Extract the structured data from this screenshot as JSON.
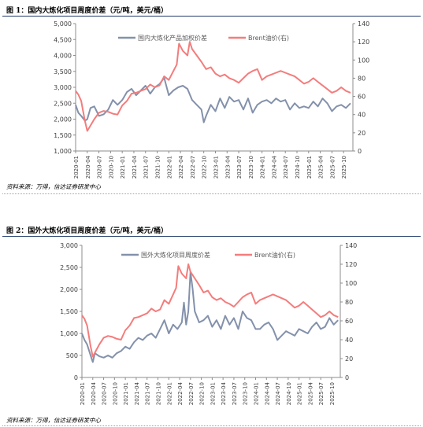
{
  "figures": [
    {
      "title": "图 1：国内大炼化项目周度价差（元/吨，美元/桶）",
      "source": "资料来源：万得，信达证券研发中心"
    },
    {
      "title": "图 2：国外大炼化项目周度价差（元/吨，美元/桶）",
      "source": "资料来源：万得，信达证券研发中心"
    }
  ],
  "colors": {
    "spread": "#8391ab",
    "brent": "#f47c7c",
    "axis": "#8c8c8c"
  },
  "chart_data": [
    {
      "type": "line",
      "categories": [
        "2020-01",
        "2020-04",
        "2020-07",
        "2020-10",
        "2021-01",
        "2021-04",
        "2021-07",
        "2021-10",
        "2022-01",
        "2022-04",
        "2022-07",
        "2022-10",
        "2023-01",
        "2023-04",
        "2023-07",
        "2023-10",
        "2024-01",
        "2024-04",
        "2024-07",
        "2024-10",
        "2025-01",
        "2025-04",
        "2025-07",
        "2025-10"
      ],
      "x_range": [
        2020.0,
        2025.95
      ],
      "yticks_left": [
        "1,000",
        "1,500",
        "2,000",
        "2,500",
        "3,000",
        "3,500",
        "4,000",
        "4,500",
        "5,000"
      ],
      "ylim_left": [
        1000,
        5000
      ],
      "yticks_right": [
        "0",
        "20",
        "40",
        "60",
        "80",
        "100",
        "120",
        "140"
      ],
      "ylim_right": [
        0,
        140
      ],
      "legend_position": "top",
      "series": [
        {
          "name": "国内大炼化产品加权价差",
          "axis": "left",
          "x": [
            2020.0,
            2020.06,
            2020.12,
            2020.2,
            2020.25,
            2020.32,
            2020.4,
            2020.5,
            2020.6,
            2020.7,
            2020.8,
            2020.9,
            2021.0,
            2021.1,
            2021.2,
            2021.3,
            2021.4,
            2021.5,
            2021.6,
            2021.7,
            2021.8,
            2021.9,
            2022.0,
            2022.1,
            2022.2,
            2022.3,
            2022.4,
            2022.5,
            2022.6,
            2022.7,
            2022.75,
            2022.8,
            2022.9,
            2023.0,
            2023.1,
            2023.2,
            2023.3,
            2023.4,
            2023.5,
            2023.6,
            2023.7,
            2023.8,
            2023.9,
            2024.0,
            2024.1,
            2024.2,
            2024.3,
            2024.4,
            2024.5,
            2024.6,
            2024.7,
            2024.8,
            2024.9,
            2025.0,
            2025.1,
            2025.2,
            2025.3,
            2025.4,
            2025.5,
            2025.6,
            2025.7,
            2025.8,
            2025.9
          ],
          "values": [
            2450,
            2200,
            2100,
            1950,
            2000,
            2350,
            2400,
            2100,
            2150,
            2300,
            2600,
            2450,
            2600,
            2850,
            2950,
            2750,
            2900,
            3050,
            2800,
            3000,
            3100,
            3300,
            2750,
            2900,
            3000,
            3050,
            2950,
            2600,
            2450,
            2300,
            1900,
            2100,
            2450,
            2250,
            2650,
            2350,
            2700,
            2550,
            2600,
            2300,
            2650,
            2200,
            2450,
            2550,
            2600,
            2500,
            2650,
            2550,
            2600,
            2300,
            2500,
            2350,
            2400,
            2350,
            2550,
            2400,
            2650,
            2500,
            2250,
            2400,
            2450,
            2350,
            2500
          ]
        },
        {
          "name": "Brent油价(右)",
          "axis": "right",
          "x": [
            2020.0,
            2020.06,
            2020.12,
            2020.2,
            2020.25,
            2020.32,
            2020.4,
            2020.5,
            2020.6,
            2020.7,
            2020.8,
            2020.9,
            2021.0,
            2021.1,
            2021.2,
            2021.3,
            2021.4,
            2021.5,
            2021.6,
            2021.7,
            2021.8,
            2021.9,
            2022.0,
            2022.1,
            2022.17,
            2022.22,
            2022.3,
            2022.4,
            2022.45,
            2022.5,
            2022.6,
            2022.7,
            2022.8,
            2022.9,
            2023.0,
            2023.1,
            2023.2,
            2023.3,
            2023.4,
            2023.5,
            2023.6,
            2023.7,
            2023.8,
            2023.9,
            2024.0,
            2024.1,
            2024.2,
            2024.3,
            2024.4,
            2024.5,
            2024.6,
            2024.7,
            2024.8,
            2024.9,
            2025.0,
            2025.1,
            2025.2,
            2025.3,
            2025.4,
            2025.5,
            2025.6,
            2025.7,
            2025.8,
            2025.9
          ],
          "values": [
            66,
            62,
            55,
            33,
            22,
            28,
            35,
            42,
            44,
            43,
            41,
            40,
            50,
            55,
            63,
            64,
            66,
            68,
            73,
            70,
            72,
            82,
            78,
            88,
            95,
            118,
            110,
            105,
            120,
            112,
            105,
            98,
            90,
            92,
            85,
            82,
            84,
            80,
            78,
            75,
            80,
            85,
            88,
            90,
            78,
            82,
            84,
            86,
            88,
            86,
            84,
            82,
            78,
            74,
            76,
            80,
            76,
            72,
            68,
            64,
            66,
            70,
            66,
            64
          ]
        }
      ]
    },
    {
      "type": "line",
      "categories": [
        "2020-01",
        "2020-04",
        "2020-07",
        "2020-10",
        "2021-01",
        "2021-04",
        "2021-07",
        "2021-10",
        "2022-01",
        "2022-04",
        "2022-07",
        "2022-10",
        "2023-01",
        "2023-04",
        "2023-07",
        "2023-10",
        "2024-01",
        "2024-04",
        "2024-07",
        "2024-10",
        "2025-01",
        "2025-04",
        "2025-07",
        "2025-10"
      ],
      "x_range": [
        2020.0,
        2025.95
      ],
      "yticks_left": [
        "0",
        "500",
        "1,000",
        "1,500",
        "2,000",
        "2,500",
        "3,000"
      ],
      "ylim_left": [
        0,
        3000
      ],
      "yticks_right": [
        "0",
        "20",
        "40",
        "60",
        "80",
        "100",
        "120",
        "140"
      ],
      "ylim_right": [
        0,
        140
      ],
      "legend_position": "top",
      "series": [
        {
          "name": "国外大炼化项目周度价差",
          "axis": "left",
          "x": [
            2020.0,
            2020.06,
            2020.12,
            2020.2,
            2020.25,
            2020.3,
            2020.4,
            2020.5,
            2020.6,
            2020.7,
            2020.8,
            2020.9,
            2021.0,
            2021.1,
            2021.2,
            2021.3,
            2021.4,
            2021.5,
            2021.6,
            2021.7,
            2021.8,
            2021.9,
            2022.0,
            2022.1,
            2022.2,
            2022.3,
            2022.35,
            2022.4,
            2022.45,
            2022.5,
            2022.55,
            2022.6,
            2022.7,
            2022.8,
            2022.9,
            2023.0,
            2023.1,
            2023.2,
            2023.3,
            2023.4,
            2023.5,
            2023.6,
            2023.7,
            2023.8,
            2023.9,
            2024.0,
            2024.1,
            2024.2,
            2024.3,
            2024.4,
            2024.5,
            2024.6,
            2024.7,
            2024.8,
            2024.9,
            2025.0,
            2025.1,
            2025.2,
            2025.3,
            2025.4,
            2025.5,
            2025.6,
            2025.7,
            2025.8,
            2025.9
          ],
          "values": [
            1000,
            850,
            750,
            500,
            350,
            550,
            480,
            450,
            500,
            450,
            550,
            600,
            700,
            650,
            800,
            900,
            850,
            950,
            1000,
            900,
            1100,
            1300,
            1000,
            1200,
            1100,
            1250,
            1700,
            1200,
            1500,
            2400,
            2000,
            1500,
            1250,
            1300,
            1400,
            1150,
            1300,
            1100,
            1400,
            1200,
            1350,
            1100,
            1500,
            1350,
            1300,
            1100,
            1100,
            1200,
            1250,
            1100,
            850,
            950,
            1050,
            1000,
            950,
            1100,
            1050,
            1000,
            1150,
            1250,
            1100,
            1150,
            1350,
            1200,
            1300
          ]
        },
        {
          "name": "Brent油价(右)",
          "axis": "right",
          "x": [
            2020.0,
            2020.06,
            2020.12,
            2020.2,
            2020.25,
            2020.32,
            2020.4,
            2020.5,
            2020.6,
            2020.7,
            2020.8,
            2020.9,
            2021.0,
            2021.1,
            2021.2,
            2021.3,
            2021.4,
            2021.5,
            2021.6,
            2021.7,
            2021.8,
            2021.9,
            2022.0,
            2022.1,
            2022.17,
            2022.22,
            2022.3,
            2022.4,
            2022.45,
            2022.5,
            2022.6,
            2022.7,
            2022.8,
            2022.9,
            2023.0,
            2023.1,
            2023.2,
            2023.3,
            2023.4,
            2023.5,
            2023.6,
            2023.7,
            2023.8,
            2023.9,
            2024.0,
            2024.1,
            2024.2,
            2024.3,
            2024.4,
            2024.5,
            2024.6,
            2024.7,
            2024.8,
            2024.9,
            2025.0,
            2025.1,
            2025.2,
            2025.3,
            2025.4,
            2025.5,
            2025.6,
            2025.7,
            2025.8,
            2025.9
          ],
          "values": [
            66,
            62,
            55,
            33,
            22,
            28,
            35,
            42,
            44,
            43,
            41,
            40,
            50,
            55,
            63,
            64,
            66,
            68,
            73,
            70,
            72,
            82,
            78,
            88,
            95,
            118,
            110,
            105,
            120,
            112,
            105,
            98,
            90,
            92,
            85,
            82,
            84,
            80,
            78,
            75,
            80,
            85,
            88,
            90,
            78,
            82,
            84,
            86,
            88,
            86,
            84,
            82,
            78,
            74,
            76,
            80,
            76,
            72,
            68,
            64,
            66,
            70,
            66,
            64
          ]
        }
      ]
    }
  ]
}
